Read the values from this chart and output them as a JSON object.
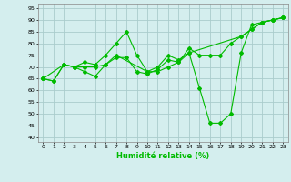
{
  "xlabel": "Humidité relative (%)",
  "bg_color": "#d4eeee",
  "grid_color": "#aacccc",
  "line_color": "#00bb00",
  "xlim": [
    -0.5,
    23.5
  ],
  "ylim": [
    38,
    97
  ],
  "yticks": [
    40,
    45,
    50,
    55,
    60,
    65,
    70,
    75,
    80,
    85,
    90,
    95
  ],
  "xticks": [
    0,
    1,
    2,
    3,
    4,
    5,
    6,
    7,
    8,
    9,
    10,
    11,
    12,
    13,
    14,
    15,
    16,
    17,
    18,
    19,
    20,
    21,
    22,
    23
  ],
  "lines": [
    {
      "x": [
        0,
        1,
        2,
        3,
        4,
        5,
        6,
        7,
        8,
        9,
        10,
        11,
        12,
        13,
        14,
        15,
        16,
        17,
        18,
        19,
        20,
        21,
        22,
        23
      ],
      "y": [
        65,
        64,
        71,
        70,
        72,
        71,
        75,
        80,
        85,
        75,
        68,
        70,
        75,
        73,
        76,
        61,
        46,
        46,
        50,
        76,
        88,
        89,
        90,
        91
      ]
    },
    {
      "x": [
        0,
        1,
        2,
        3,
        4,
        5,
        6,
        7,
        8,
        9,
        10,
        11,
        12,
        13,
        14,
        15,
        16,
        17,
        18,
        19,
        20,
        21,
        22,
        23
      ],
      "y": [
        65,
        64,
        71,
        70,
        68,
        66,
        71,
        74,
        74,
        68,
        67,
        69,
        73,
        72,
        78,
        75,
        75,
        75,
        80,
        83,
        86,
        89,
        90,
        91
      ]
    },
    {
      "x": [
        0,
        2,
        3,
        4,
        5,
        6,
        7,
        10,
        11,
        12,
        13,
        14,
        19,
        20,
        21,
        22,
        23
      ],
      "y": [
        65,
        71,
        70,
        70,
        70,
        71,
        75,
        68,
        68,
        70,
        72,
        76,
        83,
        86,
        89,
        90,
        91
      ]
    }
  ]
}
